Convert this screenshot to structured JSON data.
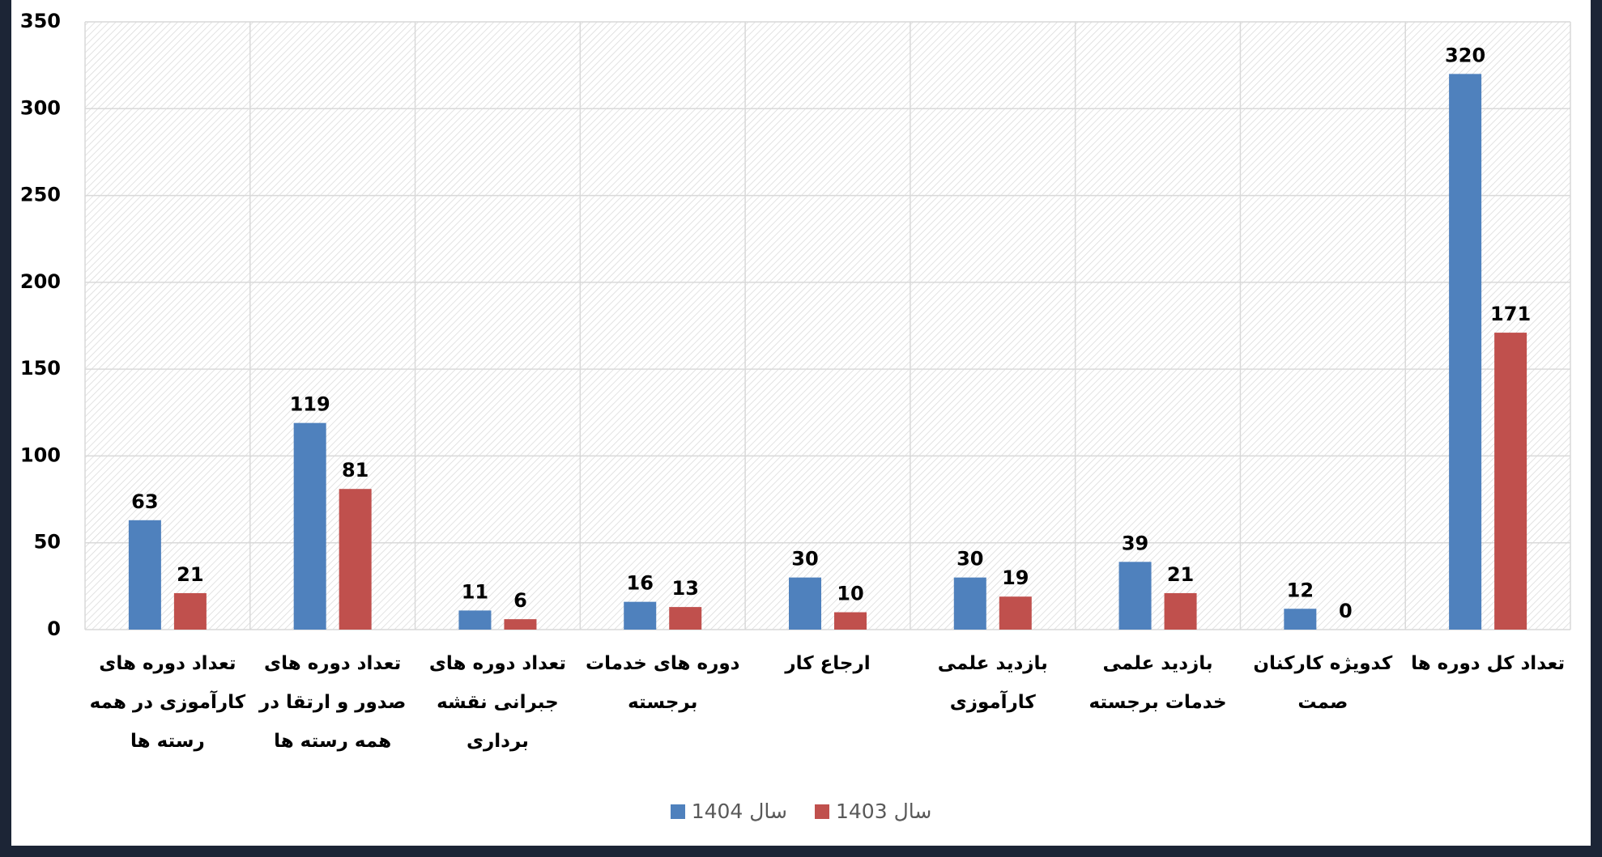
{
  "chart_data": {
    "type": "bar",
    "categories": [
      "تعداد دوره های کارآموزی در همه رسته ها",
      "تعداد دوره های صدور و ارتقا در همه رسته ها",
      "تعداد دوره های جبرانی نقشه برداری",
      "دوره های خدمات برجسته",
      "ارجاع کار",
      "بازدید علمی کارآموزی",
      "بازدید علمی خدمات برجسته",
      "کدویژه کارکنان صمت",
      "تعداد کل دوره ها"
    ],
    "series": [
      {
        "name": "سال 1404",
        "color": "#4f81bd",
        "values": [
          63,
          119,
          11,
          16,
          30,
          30,
          39,
          12,
          320
        ]
      },
      {
        "name": "سال 1403",
        "color": "#c0504d",
        "values": [
          21,
          81,
          6,
          13,
          10,
          19,
          21,
          0,
          171
        ]
      }
    ],
    "ylim": [
      0,
      350
    ],
    "yticks": [
      0,
      50,
      100,
      150,
      200,
      250,
      300,
      350
    ],
    "grid": true,
    "legend": "bottom"
  }
}
